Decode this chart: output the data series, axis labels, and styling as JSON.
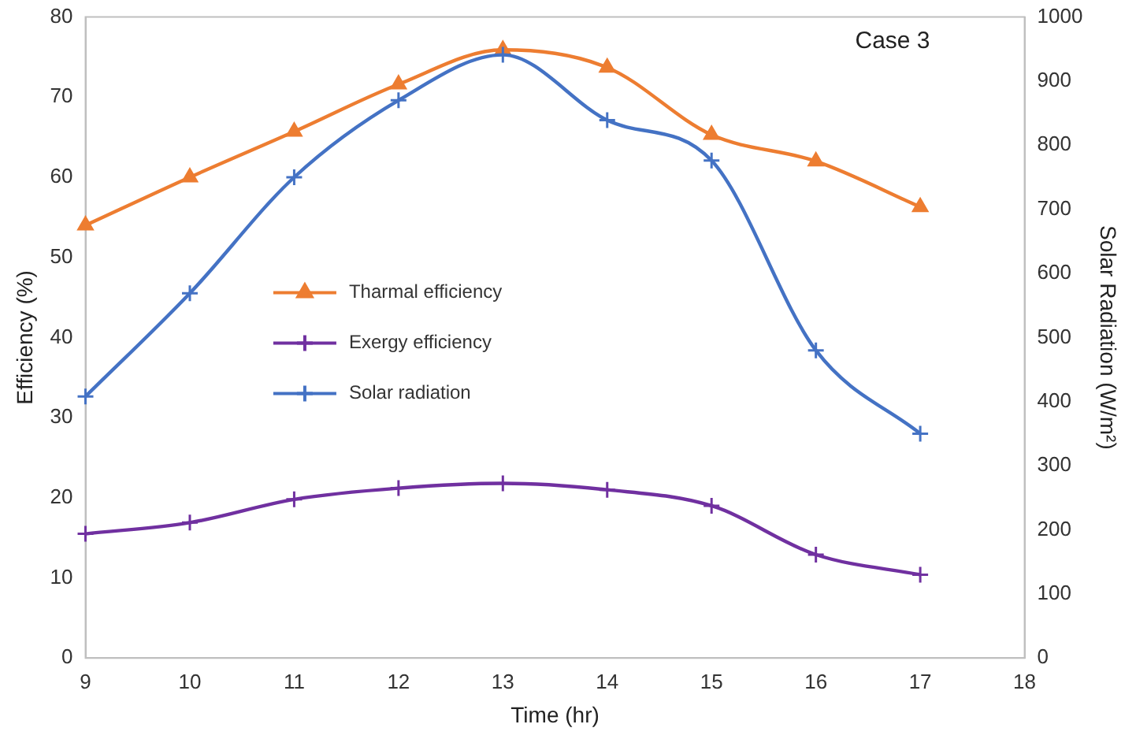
{
  "chart_data": {
    "type": "line",
    "xlabel": "Time (hr)",
    "ylabel": "Efficiency (%)",
    "y2label": "Solar Radiation (W/m²)",
    "x": [
      9,
      10,
      11,
      12,
      13,
      14,
      15,
      16,
      17
    ],
    "xlim": [
      9,
      18
    ],
    "xticks": [
      9,
      10,
      11,
      12,
      13,
      14,
      15,
      16,
      17,
      18
    ],
    "ylim": [
      0,
      80
    ],
    "yticks": [
      0,
      10,
      20,
      30,
      40,
      50,
      60,
      70,
      80
    ],
    "y2lim": [
      0,
      1000
    ],
    "y2ticks": [
      0,
      100,
      200,
      300,
      400,
      500,
      600,
      700,
      800,
      900,
      1000
    ],
    "grid": false,
    "legend": "left",
    "annotations": [
      "Case 3"
    ],
    "series": [
      {
        "name": "Tharmal efficiency",
        "color": "#ed7d31",
        "marker": "triangle",
        "values": [
          54,
          60,
          65.7,
          71.6,
          75.9,
          73.7,
          65.3,
          62,
          56.3
        ]
      },
      {
        "name": "Exergy efficiency",
        "color": "#7030a0",
        "marker": "cross",
        "values": [
          15.5,
          16.9,
          19.8,
          21.2,
          21.8,
          21,
          19,
          12.9,
          10.4
        ]
      },
      {
        "name": "Solar radiation",
        "color": "#4472c4",
        "marker": "cross",
        "axis": "y2",
        "values": [
          408,
          569,
          750,
          870,
          941,
          839,
          776,
          480,
          350
        ]
      }
    ]
  }
}
